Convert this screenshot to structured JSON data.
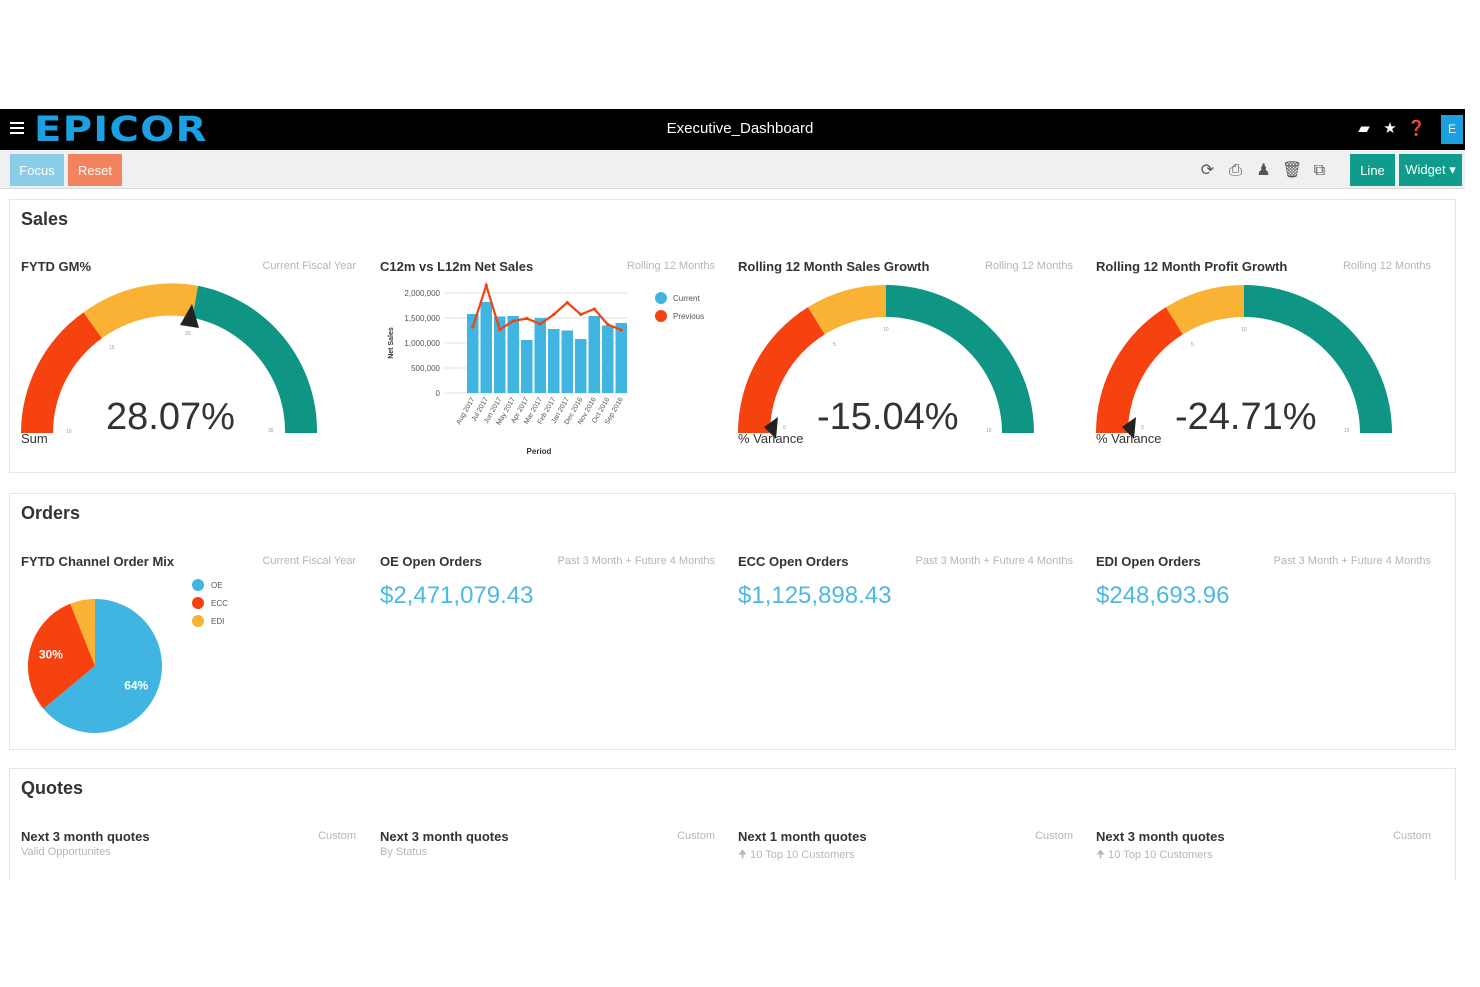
{
  "app": {
    "logo": "EPICOR",
    "title": "Executive_Dashboard",
    "top_icons": [
      "chat-icon",
      "star-icon",
      "help-icon"
    ],
    "user_initial": "E"
  },
  "toolbar": {
    "focus_label": "Focus",
    "reset_label": "Reset",
    "line_label": "Line",
    "widget_label": "Widget ▾",
    "icons": [
      "refresh-icon",
      "print-icon",
      "user-icon",
      "trash-icon",
      "copy-icon"
    ]
  },
  "colors": {
    "brand": "#1ba1e2",
    "red": "#f5420f",
    "orange": "#f9b233",
    "teal": "#0f9583",
    "blue": "#40b5e2",
    "value_blue": "#4db8e0"
  },
  "sales": {
    "title": "Sales",
    "fytd_gm": {
      "title": "FYTD GM%",
      "sub": "Current Fiscal Year",
      "value": "28.07%",
      "label": "Sum",
      "needle_pct": 0.55
    },
    "net_sales": {
      "title": "C12m vs L12m Net Sales",
      "sub": "Rolling 12 Months"
    },
    "sales_growth": {
      "title": "Rolling 12 Month Sales Growth",
      "sub": "Rolling 12 Months",
      "value": "-15.04%",
      "label": "% Variance",
      "needle_pct": 0.02
    },
    "profit_growth": {
      "title": "Rolling 12 Month Profit Growth",
      "sub": "Rolling 12 Months",
      "value": "-24.71%",
      "label": "% Variance",
      "needle_pct": 0.02
    }
  },
  "orders": {
    "title": "Orders",
    "channel_mix": {
      "title": "FYTD Channel Order Mix",
      "sub": "Current Fiscal Year"
    },
    "oe": {
      "title": "OE Open Orders",
      "sub": "Past 3 Month + Future 4 Months",
      "value": "$2,471,079.43"
    },
    "ecc": {
      "title": "ECC Open Orders",
      "sub": "Past 3 Month + Future 4 Months",
      "value": "$1,125,898.43"
    },
    "edi": {
      "title": "EDI Open Orders",
      "sub": "Past 3 Month + Future 4 Months",
      "value": "$248,693.96"
    }
  },
  "quotes": {
    "title": "Quotes",
    "items": [
      {
        "title": "Next 3 month quotes",
        "sub": "Custom",
        "note": "Valid Opportunites"
      },
      {
        "title": "Next 3 month quotes",
        "sub": "Custom",
        "note": "By Status"
      },
      {
        "title": "Next 1 month quotes",
        "sub": "Custom",
        "note": "🠉 10  Top 10 Customers"
      },
      {
        "title": "Next 3 month quotes",
        "sub": "Custom",
        "note": "🠉 10  Top 10 Customers"
      }
    ]
  },
  "chart_data": [
    {
      "type": "bar",
      "xlabel": "Period",
      "ylabel": "Net Sales",
      "ylim": [
        0,
        2000000
      ],
      "yticks": [
        "2,000,000",
        "1,500,000",
        "1,000,000",
        "500,000",
        "0"
      ],
      "categories": [
        "Aug 2017",
        "Jul 2017",
        "Jun 2017",
        "May 2017",
        "Apr 2017",
        "Mar 2017",
        "Feb 2017",
        "Jan 2017",
        "Dec 2016",
        "Nov 2016",
        "Oct 2016",
        "Sep 2016"
      ],
      "series": [
        {
          "name": "Current",
          "kind": "bar",
          "color": "#40b5e2",
          "values": [
            1580000,
            1820000,
            1530000,
            1540000,
            1060000,
            1500000,
            1280000,
            1250000,
            1080000,
            1540000,
            1350000,
            1400000
          ]
        },
        {
          "name": "Previous",
          "kind": "line",
          "color": "#f5420f",
          "values": [
            1320000,
            2150000,
            1270000,
            1440000,
            1490000,
            1380000,
            1570000,
            1810000,
            1570000,
            1680000,
            1370000,
            1260000
          ]
        }
      ],
      "legend": "top-right"
    },
    {
      "type": "pie",
      "categories": [
        "OE",
        "ECC",
        "EDI"
      ],
      "values": [
        64,
        30,
        6
      ],
      "labels": [
        "64%",
        "30%",
        ""
      ],
      "colors": [
        "#40b5e2",
        "#f5420f",
        "#f9b233"
      ],
      "legend": "right"
    }
  ]
}
